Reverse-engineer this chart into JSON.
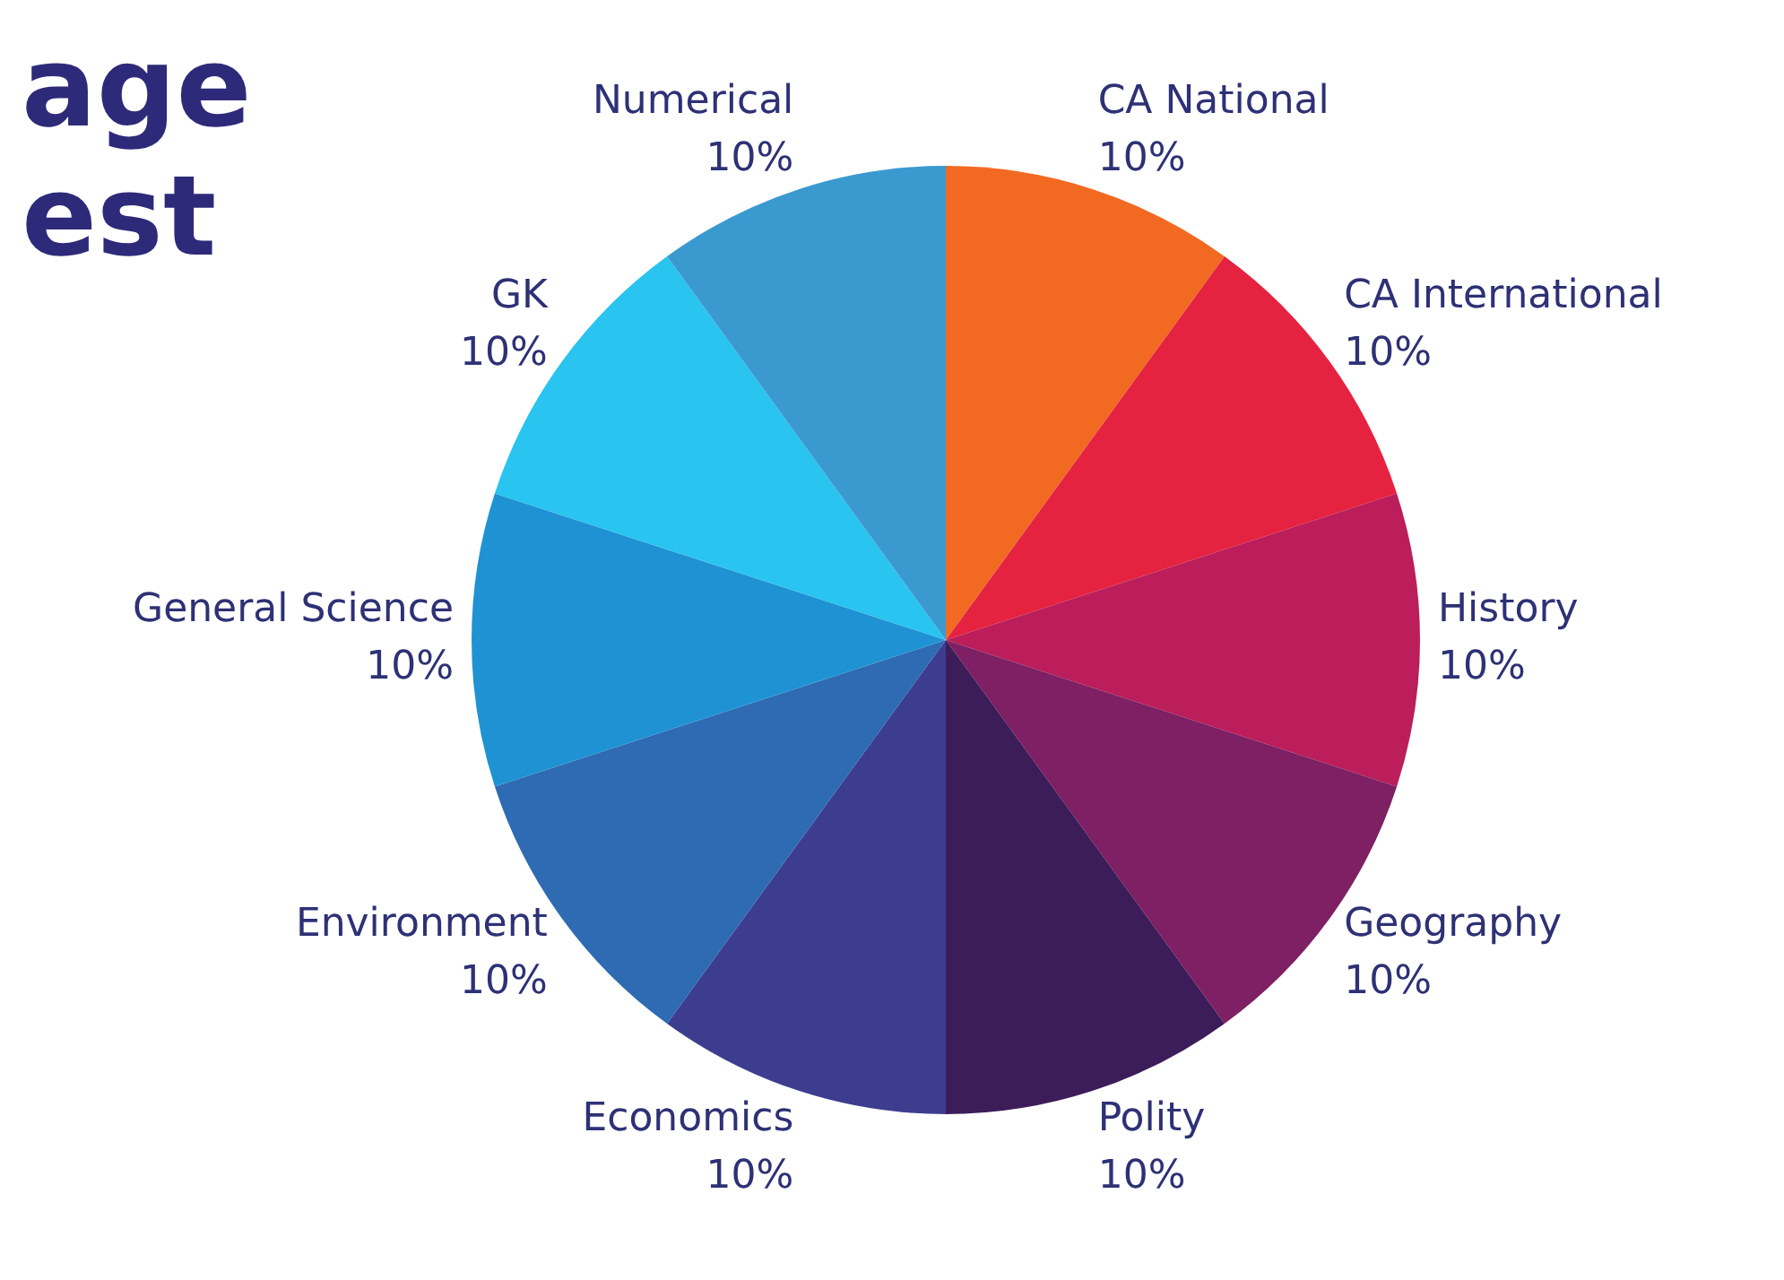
{
  "chart_data": {
    "type": "pie",
    "title": "age\nest",
    "categories": [
      "CA National",
      "CA International",
      "History",
      "Geography",
      "Polity",
      "Economics",
      "Environment",
      "General Science",
      "GK",
      "Numerical"
    ],
    "values": [
      10,
      10,
      10,
      10,
      10,
      10,
      10,
      10,
      10,
      10
    ],
    "value_labels": [
      "10%",
      "10%",
      "10%",
      "10%",
      "10%",
      "10%",
      "10%",
      "10%",
      "10%",
      "10%"
    ],
    "colors": [
      "#f26a22",
      "#e52340",
      "#bb1e5a",
      "#7e2063",
      "#3c1d5a",
      "#3d3d8f",
      "#2e6bb3",
      "#1f92d4",
      "#29c4f0",
      "#3a9ad0"
    ],
    "legend": false
  }
}
